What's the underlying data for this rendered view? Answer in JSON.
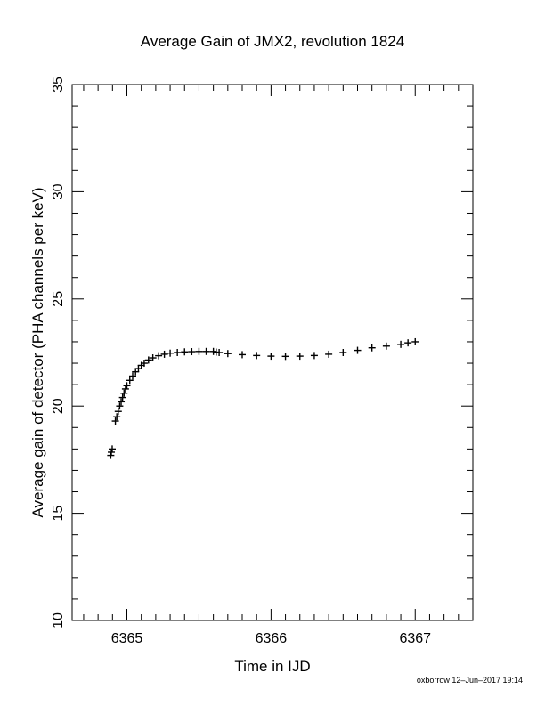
{
  "chart_data": {
    "type": "scatter",
    "title": "Average Gain of JMX2, revolution 1824",
    "xlabel": "Time in IJD",
    "ylabel": "Average gain of detector (PHA channels per keV)",
    "xlim": [
      6364.62,
      6367.4
    ],
    "ylim": [
      10,
      35
    ],
    "xticks": [
      6365,
      6366,
      6367
    ],
    "yticks": [
      10,
      15,
      20,
      25,
      30,
      35
    ],
    "grid": false,
    "marker": "+",
    "series": [
      {
        "x": [
          6364.888,
          6364.892,
          6364.898,
          6364.92,
          6364.93,
          6364.94,
          6364.95,
          6364.96,
          6364.97,
          6364.98,
          6364.99,
          6365.0,
          6365.02,
          6365.04,
          6365.06,
          6365.08,
          6365.1,
          6365.12,
          6365.15,
          6365.18,
          6365.22,
          6365.26,
          6365.3,
          6365.35,
          6365.4,
          6365.45,
          6365.5,
          6365.55,
          6365.6,
          6365.62,
          6365.64,
          6365.7,
          6365.8,
          6365.9,
          6366.0,
          6366.1,
          6366.2,
          6366.3,
          6366.4,
          6366.5,
          6366.6,
          6366.7,
          6366.8,
          6366.9,
          6366.95,
          6367.0
        ],
        "y": [
          17.7,
          17.85,
          18.0,
          19.3,
          19.5,
          19.75,
          20.0,
          20.2,
          20.4,
          20.6,
          20.8,
          20.95,
          21.2,
          21.4,
          21.6,
          21.75,
          21.9,
          22.0,
          22.15,
          22.25,
          22.35,
          22.42,
          22.47,
          22.5,
          22.53,
          22.54,
          22.55,
          22.55,
          22.55,
          22.52,
          22.5,
          22.45,
          22.4,
          22.36,
          22.33,
          22.32,
          22.33,
          22.36,
          22.42,
          22.5,
          22.6,
          22.72,
          22.8,
          22.88,
          22.95,
          23.0
        ]
      }
    ]
  },
  "footer": "oxborrow 12–Jun–2017 19:14"
}
